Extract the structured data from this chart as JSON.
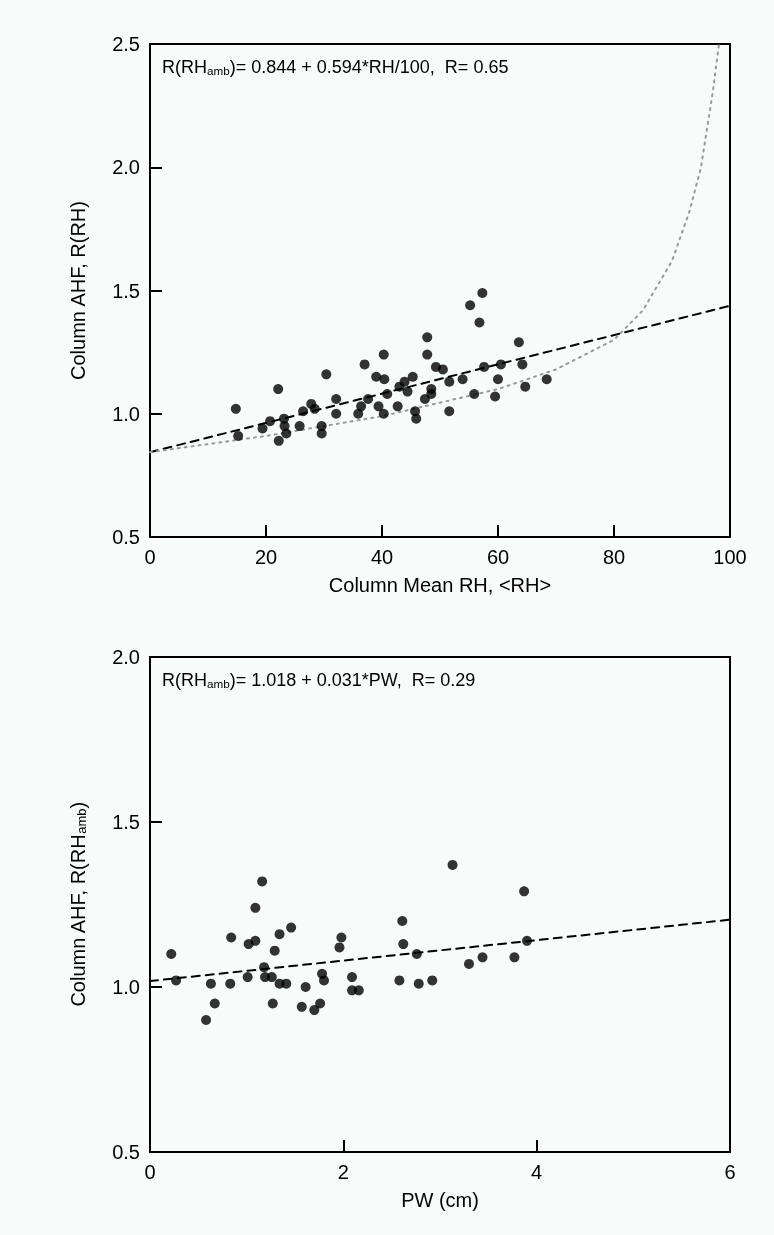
{
  "chart_data": [
    {
      "type": "scatter",
      "xlabel": "Column Mean RH, <RH>",
      "ylabel": "Column AHF, R(RH)",
      "annotations": [
        "R(RH$_{amb}$)= 0.844 + 0.594*RH/100,  R= 0.65"
      ],
      "xlim": [
        0,
        100
      ],
      "xticks": [
        0,
        20,
        40,
        60,
        80,
        100
      ],
      "ylim": [
        0.5,
        2.5
      ],
      "yticks": [
        {
          "value": 0.5,
          "label": "0.5"
        },
        {
          "value": 1,
          "label": "1.0"
        },
        {
          "value": 1.5,
          "label": "1.5"
        },
        {
          "value": 2,
          "label": "2.0"
        },
        {
          "value": 2.5,
          "label": "2.5"
        }
      ],
      "grid": false,
      "marker": "circle",
      "series": [
        {
          "color": "#000000",
          "x": [
            14.8,
            15.2,
            22.1,
            22.2,
            19.4,
            20.7,
            23.1,
            23.2,
            23.5,
            25.8,
            26.4,
            27.8,
            28.4,
            29.6,
            29.6,
            30.4,
            32.1,
            32.1,
            35.9,
            37.0,
            37.6,
            39.0,
            40.3,
            40.4,
            40.9,
            40.3,
            39.4,
            42.7,
            43.0,
            44.4,
            45.3,
            45.9,
            45.7,
            47.8,
            47.8,
            47.4,
            49.3,
            48.5,
            50.5,
            51.6,
            51.6,
            53.9,
            55.2,
            55.9,
            56.8,
            57.3,
            57.6,
            59.5,
            60.0,
            60.5,
            63.6,
            64.2,
            64.7,
            68.4,
            43.9,
            48.5,
            36.4
          ],
          "values": [
            1.02,
            0.91,
            1.1,
            0.89,
            0.94,
            0.97,
            0.98,
            0.95,
            0.92,
            0.95,
            1.01,
            1.04,
            1.02,
            0.95,
            0.92,
            1.16,
            1.06,
            1.0,
            1.0,
            1.2,
            1.06,
            1.15,
            1.24,
            1.14,
            1.08,
            1.0,
            1.03,
            1.03,
            1.11,
            1.09,
            1.15,
            0.98,
            1.01,
            1.31,
            1.24,
            1.06,
            1.19,
            1.1,
            1.18,
            1.13,
            1.01,
            1.14,
            1.44,
            1.08,
            1.37,
            1.49,
            1.19,
            1.07,
            1.14,
            1.2,
            1.29,
            1.2,
            1.11,
            1.14,
            1.13,
            1.08,
            1.03
          ]
        },
        {
          "type": "line",
          "color": "#000000",
          "line_style": "dashed",
          "marker": "none",
          "x": [
            0,
            100
          ],
          "values": [
            0.844,
            1.438
          ]
        },
        {
          "type": "line",
          "color": "#999999",
          "line_style": "dotted",
          "marker": "none",
          "x": [
            0,
            20,
            40,
            60,
            70,
            75,
            80,
            85,
            90,
            93,
            95,
            97,
            98.1
          ],
          "values": [
            0.844,
            0.91,
            0.99,
            1.1,
            1.18,
            1.24,
            1.3,
            1.42,
            1.62,
            1.82,
            2.0,
            2.3,
            2.5
          ]
        }
      ]
    },
    {
      "type": "scatter",
      "xlabel": "PW (cm)",
      "ylabel": "Column AHF, R(RH$_{amb}$)",
      "annotations": [
        "R(RH$_{amb}$)= 1.018 + 0.031*PW,  R= 0.29"
      ],
      "xlim": [
        0,
        6
      ],
      "xticks": [
        0,
        2,
        4,
        6
      ],
      "ylim": [
        0.5,
        2
      ],
      "yticks": [
        {
          "value": 0.5,
          "label": "0.5"
        },
        {
          "value": 1,
          "label": "1.0"
        },
        {
          "value": 1.5,
          "label": "1.5"
        },
        {
          "value": 2,
          "label": "2.0"
        }
      ],
      "grid": false,
      "marker": "circle",
      "series": [
        {
          "color": "#000000",
          "x": [
            0.22,
            0.27,
            0.58,
            0.63,
            0.67,
            0.84,
            0.83,
            1.02,
            1.09,
            1.09,
            1.16,
            1.01,
            1.18,
            1.19,
            1.26,
            1.27,
            1.29,
            1.34,
            1.34,
            1.41,
            1.46,
            1.57,
            1.61,
            1.7,
            1.76,
            1.78,
            1.8,
            1.96,
            1.98,
            2.09,
            2.09,
            2.16,
            2.61,
            2.62,
            2.58,
            2.76,
            2.78,
            2.92,
            3.13,
            3.3,
            3.44,
            3.77,
            3.87,
            3.9
          ],
          "values": [
            1.1,
            1.02,
            0.9,
            1.01,
            0.95,
            1.15,
            1.01,
            1.13,
            1.14,
            1.24,
            1.32,
            1.03,
            1.06,
            1.03,
            1.03,
            0.95,
            1.11,
            1.16,
            1.01,
            1.01,
            1.18,
            0.94,
            1.0,
            0.93,
            0.95,
            1.04,
            1.02,
            1.12,
            1.15,
            1.03,
            0.99,
            0.99,
            1.2,
            1.13,
            1.02,
            1.1,
            1.01,
            1.02,
            1.37,
            1.07,
            1.09,
            1.09,
            1.29,
            1.14
          ]
        },
        {
          "type": "line",
          "color": "#000000",
          "line_style": "dashed",
          "marker": "none",
          "x": [
            0,
            6
          ],
          "values": [
            1.018,
            1.204
          ]
        }
      ]
    }
  ]
}
